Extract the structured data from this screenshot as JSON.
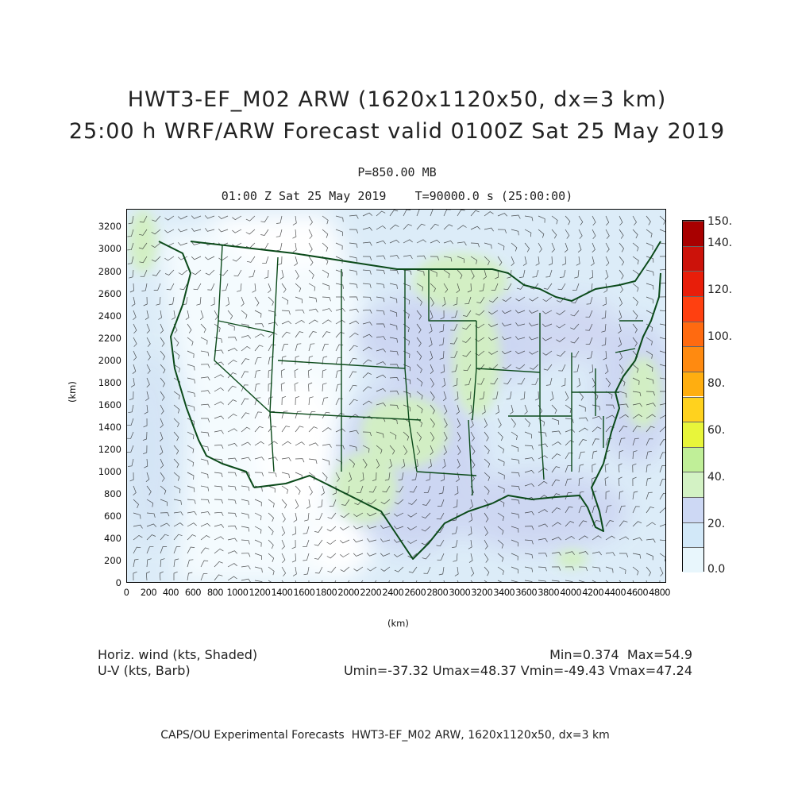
{
  "title": {
    "line1": "HWT3-EF_M02 ARW (1620x1120x50, dx=3 km)",
    "line2": "25:00 h WRF/ARW Forecast valid 0100Z Sat 25 May 2019"
  },
  "level": "P=850.00 MB",
  "timeline": "01:00 Z Sat 25 May 2019    T=90000.0 s (25:00:00)",
  "axes": {
    "xlabel": "(km)",
    "ylabel": "(km)",
    "xticks": [
      "0",
      "200",
      "400",
      "600",
      "800",
      "1000",
      "1200",
      "1400",
      "1600",
      "1800",
      "2000",
      "2200",
      "2400",
      "2600",
      "2800",
      "3000",
      "3200",
      "3400",
      "3600",
      "3800",
      "4000",
      "4200",
      "4400",
      "4600",
      "4800"
    ],
    "yticks": [
      "0",
      "200",
      "400",
      "600",
      "800",
      "1000",
      "1200",
      "1400",
      "1600",
      "1800",
      "2000",
      "2200",
      "2400",
      "2600",
      "2800",
      "3000",
      "3200"
    ],
    "xlim": [
      0,
      4860
    ],
    "ylim": [
      0,
      3360
    ]
  },
  "colorbar": {
    "labels": [
      "0.0",
      "20.",
      "40.",
      "60.",
      "80.",
      "100.",
      "120.",
      "140.",
      "150."
    ],
    "colors": [
      "#e8f6fc",
      "#d2e8f8",
      "#cdd8f4",
      "#d3f2c4",
      "#c0ef98",
      "#e8f53a",
      "#ffd21e",
      "#ffae10",
      "#ff8a10",
      "#ff6a10",
      "#ff4010",
      "#e81e0a",
      "#cc120a",
      "#a80000"
    ]
  },
  "footer": {
    "left1": "Horiz. wind (kts, Shaded)",
    "left2": "U-V (kts, Barb)",
    "right1": "Min=0.374  Max=54.9",
    "right2": "Umin=-37.32 Umax=48.37 Vmin=-49.43 Vmax=47.24",
    "credit": "CAPS/OU Experimental Forecasts  HWT3-EF_M02 ARW, 1620x1120x50, dx=3 km"
  },
  "colors": {
    "map_lines": "#0b4a1a",
    "barbs": "#1a1a1a",
    "background_field": "#d8eaf6"
  }
}
